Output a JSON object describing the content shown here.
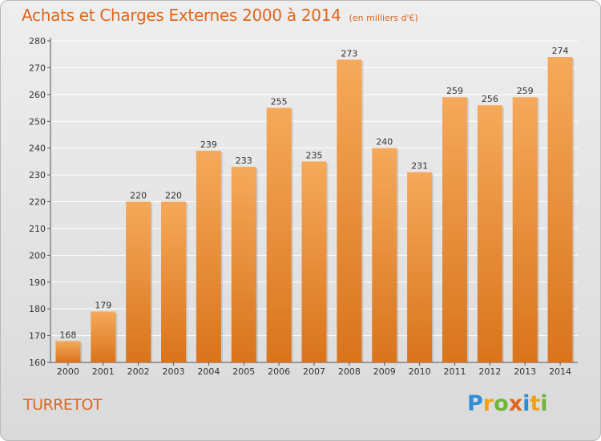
{
  "title": "Achats et Charges Externes 2000 à 2014",
  "unit_note": "(en milliers d'€)",
  "commune": "TURRETOT",
  "logo": {
    "letters": [
      {
        "ch": "P",
        "color": "#2e8fd6"
      },
      {
        "ch": "r",
        "color": "#f0a11a"
      },
      {
        "ch": "o",
        "color": "#6db63a"
      },
      {
        "ch": "x",
        "color": "#e0661c"
      },
      {
        "ch": "i",
        "color": "#2e8fd6"
      },
      {
        "ch": "t",
        "color": "#f0a11a"
      },
      {
        "ch": "i",
        "color": "#6db63a"
      }
    ]
  },
  "colors": {
    "accent": "#e0661c",
    "bar_top": "#f5a95a",
    "bar_bottom": "#d9741c",
    "grid": "#ffffff"
  },
  "chart_data": {
    "type": "bar",
    "categories": [
      "2000",
      "2001",
      "2002",
      "2003",
      "2004",
      "2005",
      "2006",
      "2007",
      "2008",
      "2009",
      "2010",
      "2011",
      "2012",
      "2013",
      "2014"
    ],
    "values": [
      168,
      179,
      220,
      220,
      239,
      233,
      255,
      235,
      273,
      240,
      231,
      259,
      256,
      259,
      274
    ],
    "ylim": [
      160,
      280
    ],
    "yticks": [
      160,
      170,
      180,
      190,
      200,
      210,
      220,
      230,
      240,
      250,
      260,
      270,
      280
    ],
    "grid": true,
    "data_labels": true
  }
}
